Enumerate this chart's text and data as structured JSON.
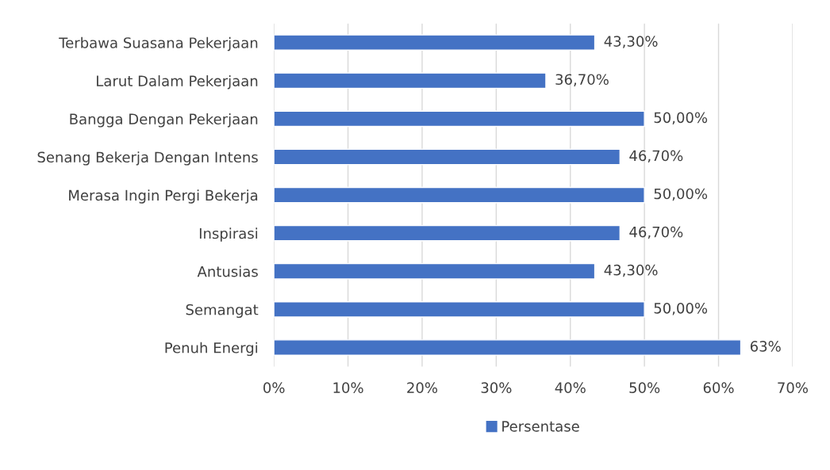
{
  "chart_data": {
    "type": "bar",
    "orientation": "horizontal",
    "categories": [
      "Terbawa Suasana Pekerjaan",
      "Larut Dalam Pekerjaan",
      "Bangga Dengan Pekerjaan",
      "Senang Bekerja Dengan Intens",
      "Merasa Ingin Pergi Bekerja",
      "Inspirasi",
      "Antusias",
      "Semangat",
      "Penuh Energi"
    ],
    "series": [
      {
        "name": "Persentase",
        "color": "#4472c4",
        "values": [
          43.3,
          36.7,
          50.0,
          46.7,
          50.0,
          46.7,
          43.3,
          50.0,
          63
        ],
        "value_labels": [
          "43,30%",
          "36,70%",
          "50,00%",
          "46,70%",
          "50,00%",
          "46,70%",
          "43,30%",
          "50,00%",
          "63%"
        ]
      }
    ],
    "xlim": [
      0,
      70
    ],
    "xticks": [
      {
        "value": 0,
        "label": "0%"
      },
      {
        "value": 10,
        "label": "10%"
      },
      {
        "value": 20,
        "label": "20%"
      },
      {
        "value": 30,
        "label": "30%"
      },
      {
        "value": 40,
        "label": "40%"
      },
      {
        "value": 50,
        "label": "50%"
      },
      {
        "value": 60,
        "label": "60%"
      },
      {
        "value": 70,
        "label": "70%"
      }
    ],
    "grid": "x",
    "legend": "bottom"
  }
}
